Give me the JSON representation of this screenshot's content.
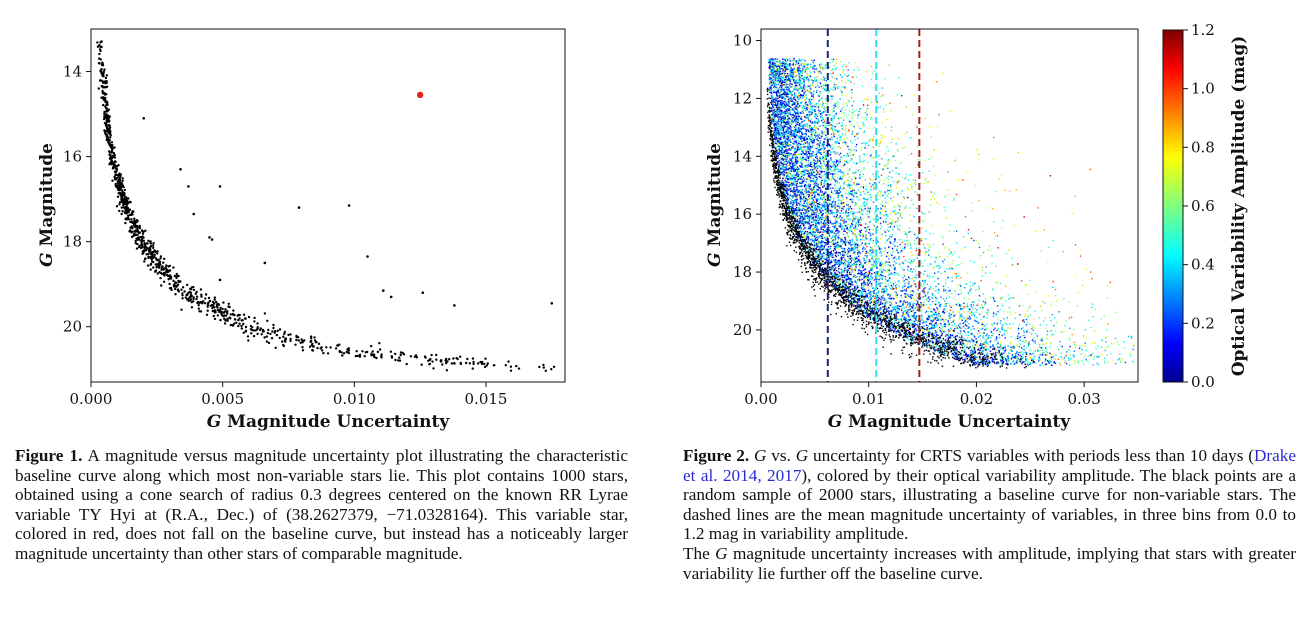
{
  "figure1": {
    "xlabel_prefix": "G",
    "xlabel_rest": " Magnitude Uncertainty",
    "ylabel_prefix": "G",
    "ylabel_rest": " Magnitude",
    "chart_data": {
      "type": "scatter",
      "xlim": [
        0.0,
        0.018
      ],
      "ylim": [
        21.3,
        13.0
      ],
      "x_ticks": [
        "0.000",
        "0.005",
        "0.010",
        "0.015"
      ],
      "x_tick_values": [
        0.0,
        0.005,
        0.01,
        0.015
      ],
      "y_ticks": [
        "14",
        "16",
        "18",
        "20"
      ],
      "y_tick_values": [
        14,
        16,
        18,
        20
      ],
      "grid": false,
      "baseline_curve_samples": {
        "x": [
          0.0003,
          0.0005,
          0.0008,
          0.0012,
          0.0018,
          0.0025,
          0.0035,
          0.005,
          0.0065,
          0.008,
          0.01,
          0.012,
          0.014,
          0.016,
          0.018
        ],
        "y": [
          13.0,
          14.6,
          16.0,
          17.0,
          17.9,
          18.5,
          19.1,
          19.7,
          20.1,
          20.4,
          20.6,
          20.75,
          20.85,
          20.95,
          21.0
        ]
      },
      "outliers": {
        "x": [
          0.002,
          0.0034,
          0.0037,
          0.0049,
          0.0045,
          0.0046,
          0.0049,
          0.0066,
          0.0079,
          0.0098,
          0.0105,
          0.0111,
          0.0114,
          0.0126,
          0.0138,
          0.0175,
          0.0039
        ],
        "y": [
          15.1,
          16.3,
          16.7,
          16.7,
          17.9,
          17.95,
          18.9,
          18.5,
          17.2,
          17.15,
          18.35,
          19.15,
          19.3,
          19.2,
          19.5,
          19.45,
          17.35
        ]
      },
      "highlight": {
        "x": 0.0125,
        "y": 14.55,
        "color": "#e8211c"
      },
      "n_points": 1000
    }
  },
  "figure2": {
    "xlabel_prefix": "G",
    "xlabel_rest": " Magnitude Uncertainty",
    "ylabel_prefix": "G",
    "ylabel_rest": " Magnitude",
    "colorbar_label": "Optical Variability Amplitude (mag)",
    "colorbar_ticks": [
      "0.0",
      "0.2",
      "0.4",
      "0.6",
      "0.8",
      "1.0",
      "1.2"
    ],
    "colorbar_tick_values": [
      0.0,
      0.2,
      0.4,
      0.6,
      0.8,
      1.0,
      1.2
    ],
    "chart_data": {
      "type": "scatter",
      "xlim": [
        0.0,
        0.035
      ],
      "ylim": [
        21.8,
        9.6
      ],
      "x_ticks": [
        "0.00",
        "0.01",
        "0.02",
        "0.03"
      ],
      "x_tick_values": [
        0.0,
        0.01,
        0.02,
        0.03
      ],
      "y_ticks": [
        "10",
        "12",
        "14",
        "16",
        "18",
        "20"
      ],
      "y_tick_values": [
        10,
        12,
        14,
        16,
        18,
        20
      ],
      "grid": false,
      "color_range": [
        0.0,
        1.2
      ],
      "colormap": "jet",
      "dashed_lines": [
        {
          "x": 0.0062,
          "color": "#1a237e"
        },
        {
          "x": 0.0107,
          "color": "#2ee0f0"
        },
        {
          "x": 0.0147,
          "color": "#a0201a"
        }
      ],
      "baseline_sample_size": 2000
    }
  },
  "captions": {
    "fig1_label": "Figure 1.",
    "fig1_text": " A magnitude versus magnitude uncertainty plot illustrating the characteristic baseline curve along which most non-variable stars lie. This plot contains 1000 stars, obtained using a cone search of radius 0.3 degrees centered on the known RR Lyrae variable TY Hyi at (R.A., Dec.) of (38.2627379, −71.0328164). This variable star, colored in red, does not fall on the baseline curve, but instead has a noticeably larger magnitude uncertainty than other stars of comparable magnitude.",
    "fig2_label": "Figure 2.",
    "fig2_text_a_g1": "G",
    "fig2_text_a_mid": " vs. ",
    "fig2_text_a_g2": "G",
    "fig2_text_a_rest": " uncertainty for CRTS variables with periods less than 10 days (",
    "fig2_link": "Drake et al. 2014, 2017",
    "fig2_text_b": "), colored by their optical variability amplitude. The black points are a random sample of 2000 stars, illustrating a baseline curve for non-variable stars. The dashed lines are the mean magnitude uncertainty of variables, in three bins from 0.0 to 1.2 mag in variability amplitude.",
    "fig2_text_c_pre": "The ",
    "fig2_text_c_g": "G",
    "fig2_text_c_rest": " magnitude uncertainty increases with amplitude, implying that stars with greater variability lie further off the baseline curve."
  }
}
